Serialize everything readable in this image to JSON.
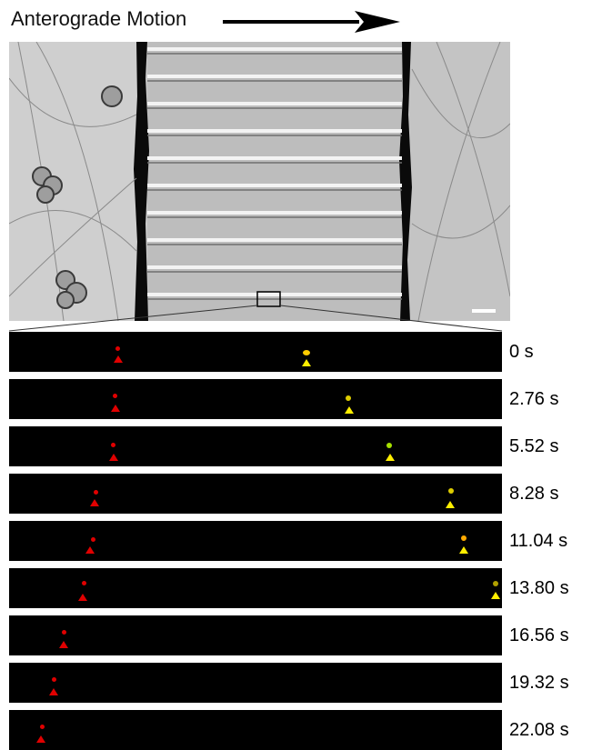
{
  "header": {
    "title": "Anterograde Motion"
  },
  "colors": {
    "red_marker": "#e00000",
    "yellow_marker": "#ffee00"
  },
  "frames": [
    {
      "time": "0 s"
    },
    {
      "time": "2.76 s"
    },
    {
      "time": "5.52 s"
    },
    {
      "time": "8.28 s"
    },
    {
      "time": "11.04 s"
    },
    {
      "time": "13.80 s"
    },
    {
      "time": "16.56 s"
    },
    {
      "time": "19.32 s"
    },
    {
      "time": "22.08 s"
    }
  ]
}
